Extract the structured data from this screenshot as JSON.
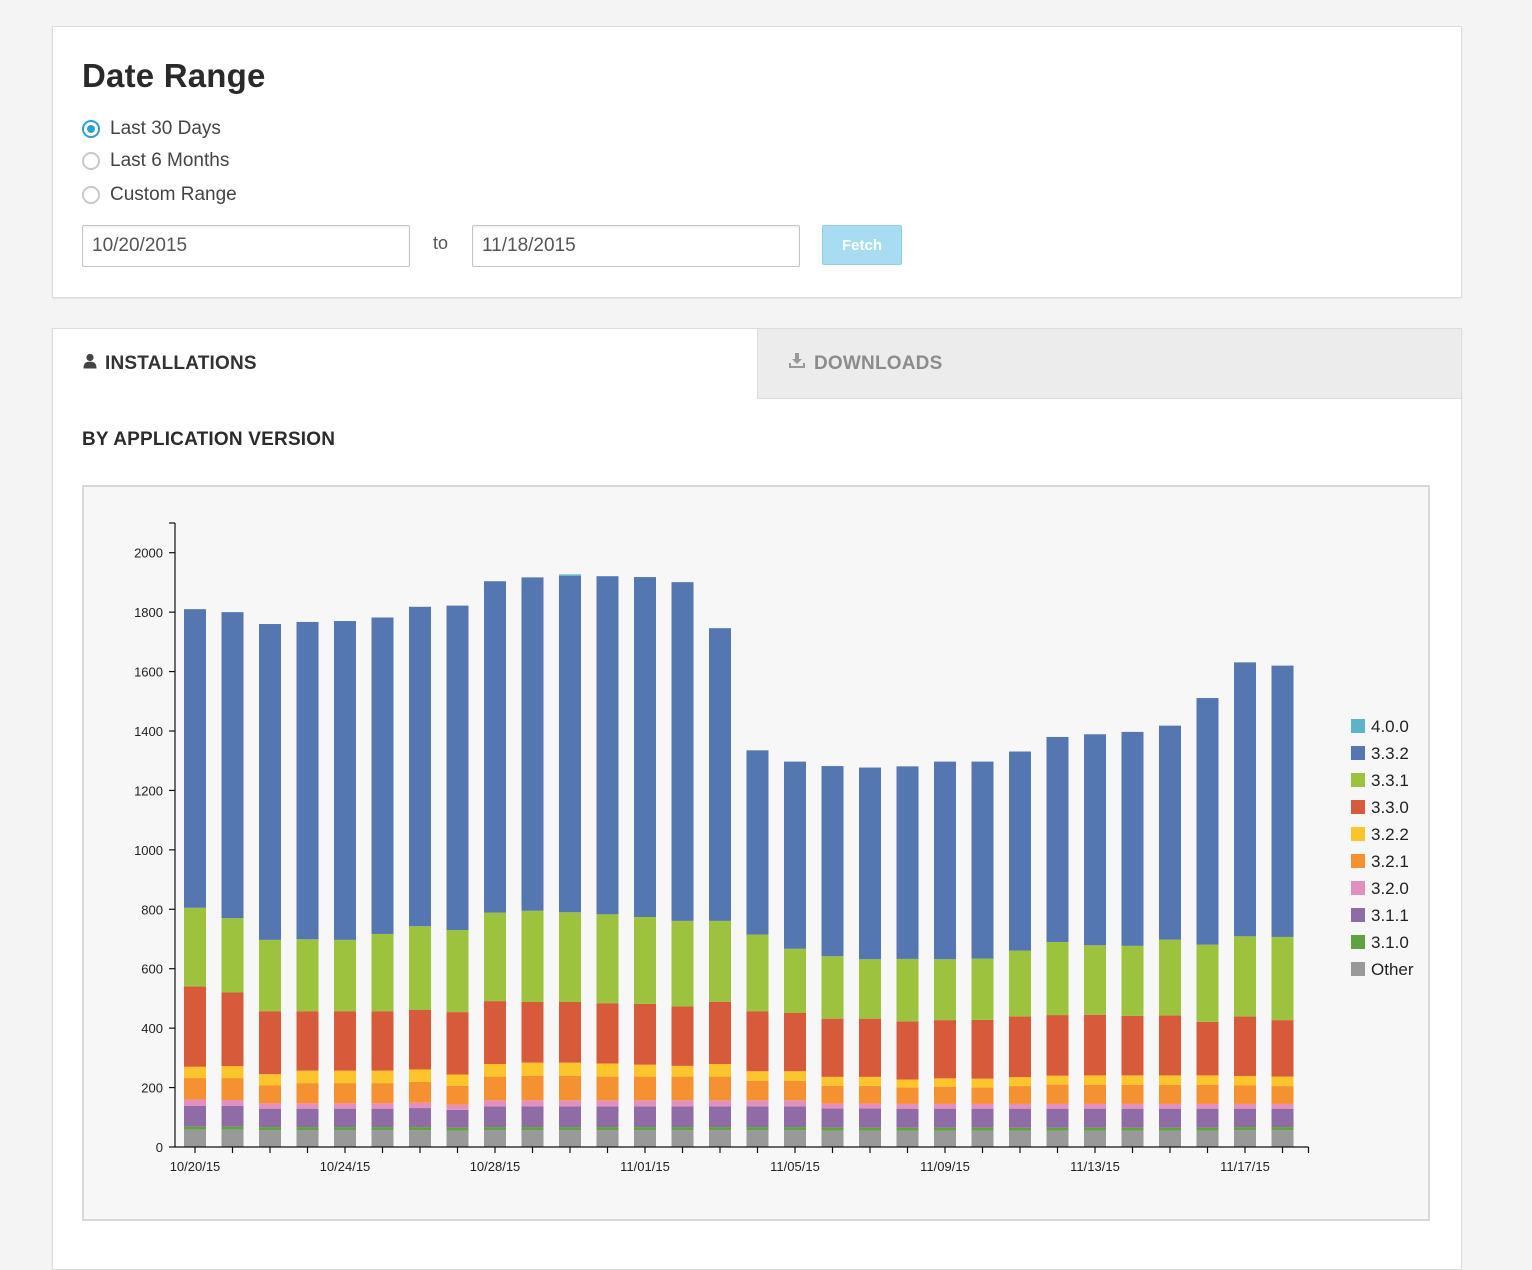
{
  "date_range": {
    "title": "Date Range",
    "options": [
      {
        "label": "Last 30 Days",
        "checked": true
      },
      {
        "label": "Last 6 Months",
        "checked": false
      },
      {
        "label": "Custom Range",
        "checked": false
      }
    ],
    "start_date": "10/20/2015",
    "to_label": "to",
    "end_date": "11/18/2015",
    "fetch_label": "Fetch"
  },
  "tabs": [
    {
      "label": "INSTALLATIONS",
      "icon": "user-icon",
      "active": true
    },
    {
      "label": "DOWNLOADS",
      "icon": "download-icon",
      "active": false
    }
  ],
  "section_heading": "BY APPLICATION VERSION",
  "chart_data": {
    "type": "bar",
    "stacked": true,
    "grid": false,
    "legend_position": "right",
    "ylim": [
      0,
      2100
    ],
    "yticks": [
      0,
      200,
      400,
      600,
      800,
      1000,
      1200,
      1400,
      1600,
      1800,
      2000
    ],
    "categories": [
      "10/20/15",
      "10/21/15",
      "10/22/15",
      "10/23/15",
      "10/24/15",
      "10/25/15",
      "10/26/15",
      "10/27/15",
      "10/28/15",
      "10/29/15",
      "10/30/15",
      "10/31/15",
      "11/01/15",
      "11/02/15",
      "11/03/15",
      "11/04/15",
      "11/05/15",
      "11/06/15",
      "11/07/15",
      "11/08/15",
      "11/09/15",
      "11/10/15",
      "11/11/15",
      "11/12/15",
      "11/13/15",
      "11/14/15",
      "11/15/15",
      "11/16/15",
      "11/17/15",
      "11/18/15"
    ],
    "x_tick_labels": [
      "10/20/15",
      "10/24/15",
      "10/28/15",
      "11/01/15",
      "11/05/15",
      "11/09/15",
      "11/13/15",
      "11/17/15"
    ],
    "series": [
      {
        "name": "Other",
        "color": "#999999",
        "values": [
          58,
          58,
          57,
          57,
          57,
          57,
          57,
          55,
          57,
          57,
          57,
          57,
          57,
          57,
          57,
          57,
          57,
          55,
          55,
          55,
          55,
          55,
          55,
          55,
          55,
          55,
          55,
          55,
          57,
          57
        ]
      },
      {
        "name": "3.1.0",
        "color": "#5fa23f",
        "values": [
          10,
          10,
          10,
          10,
          10,
          10,
          10,
          10,
          10,
          10,
          10,
          10,
          10,
          10,
          10,
          10,
          10,
          10,
          10,
          10,
          10,
          10,
          10,
          10,
          10,
          10,
          10,
          10,
          10,
          10
        ]
      },
      {
        "name": "3.1.1",
        "color": "#8f6ca6",
        "values": [
          70,
          70,
          62,
          62,
          62,
          62,
          64,
          60,
          70,
          70,
          70,
          70,
          70,
          70,
          70,
          70,
          70,
          65,
          65,
          64,
          64,
          64,
          64,
          64,
          64,
          64,
          64,
          64,
          62,
          62
        ]
      },
      {
        "name": "3.2.0",
        "color": "#e38fc0",
        "values": [
          22,
          20,
          18,
          18,
          18,
          18,
          18,
          17,
          20,
          20,
          20,
          20,
          20,
          20,
          20,
          20,
          20,
          16,
          16,
          16,
          16,
          16,
          16,
          16,
          16,
          16,
          16,
          16,
          16,
          16
        ]
      },
      {
        "name": "3.2.1",
        "color": "#f59131",
        "values": [
          72,
          74,
          60,
          68,
          68,
          68,
          70,
          64,
          80,
          82,
          82,
          80,
          80,
          80,
          80,
          66,
          66,
          60,
          60,
          55,
          58,
          55,
          60,
          65,
          64,
          64,
          64,
          64,
          62,
          60
        ]
      },
      {
        "name": "3.2.2",
        "color": "#fcc52b",
        "values": [
          38,
          40,
          38,
          42,
          42,
          42,
          42,
          38,
          42,
          45,
          45,
          44,
          40,
          36,
          42,
          32,
          32,
          30,
          30,
          27,
          28,
          30,
          30,
          30,
          32,
          32,
          32,
          32,
          32,
          32
        ]
      },
      {
        "name": "3.3.0",
        "color": "#d75b3b",
        "values": [
          270,
          248,
          212,
          200,
          200,
          200,
          200,
          210,
          212,
          204,
          204,
          202,
          205,
          200,
          210,
          202,
          196,
          196,
          196,
          196,
          196,
          198,
          204,
          204,
          204,
          200,
          202,
          180,
          200,
          190
        ]
      },
      {
        "name": "3.3.1",
        "color": "#9dc23d",
        "values": [
          265,
          250,
          240,
          242,
          240,
          260,
          282,
          276,
          298,
          307,
          302,
          300,
          292,
          288,
          272,
          258,
          216,
          210,
          200,
          210,
          205,
          206,
          222,
          246,
          234,
          236,
          255,
          260,
          270,
          280
        ]
      },
      {
        "name": "3.3.2",
        "color": "#5477b1",
        "values": [
          1005,
          1030,
          1063,
          1068,
          1073,
          1065,
          1075,
          1092,
          1115,
          1122,
          1132,
          1138,
          1144,
          1140,
          985,
          620,
          630,
          640,
          645,
          648,
          665,
          663,
          670,
          690,
          710,
          720,
          720,
          830,
          922,
          913
        ]
      },
      {
        "name": "4.0.0",
        "color": "#5db3c8",
        "values": [
          0,
          0,
          0,
          0,
          0,
          0,
          0,
          0,
          0,
          0,
          5,
          0,
          0,
          0,
          0,
          0,
          0,
          0,
          0,
          0,
          0,
          0,
          0,
          0,
          0,
          0,
          0,
          0,
          0,
          0
        ]
      }
    ],
    "legend_order": [
      "4.0.0",
      "3.3.2",
      "3.3.1",
      "3.3.0",
      "3.2.2",
      "3.2.1",
      "3.2.0",
      "3.1.1",
      "3.1.0",
      "Other"
    ]
  }
}
